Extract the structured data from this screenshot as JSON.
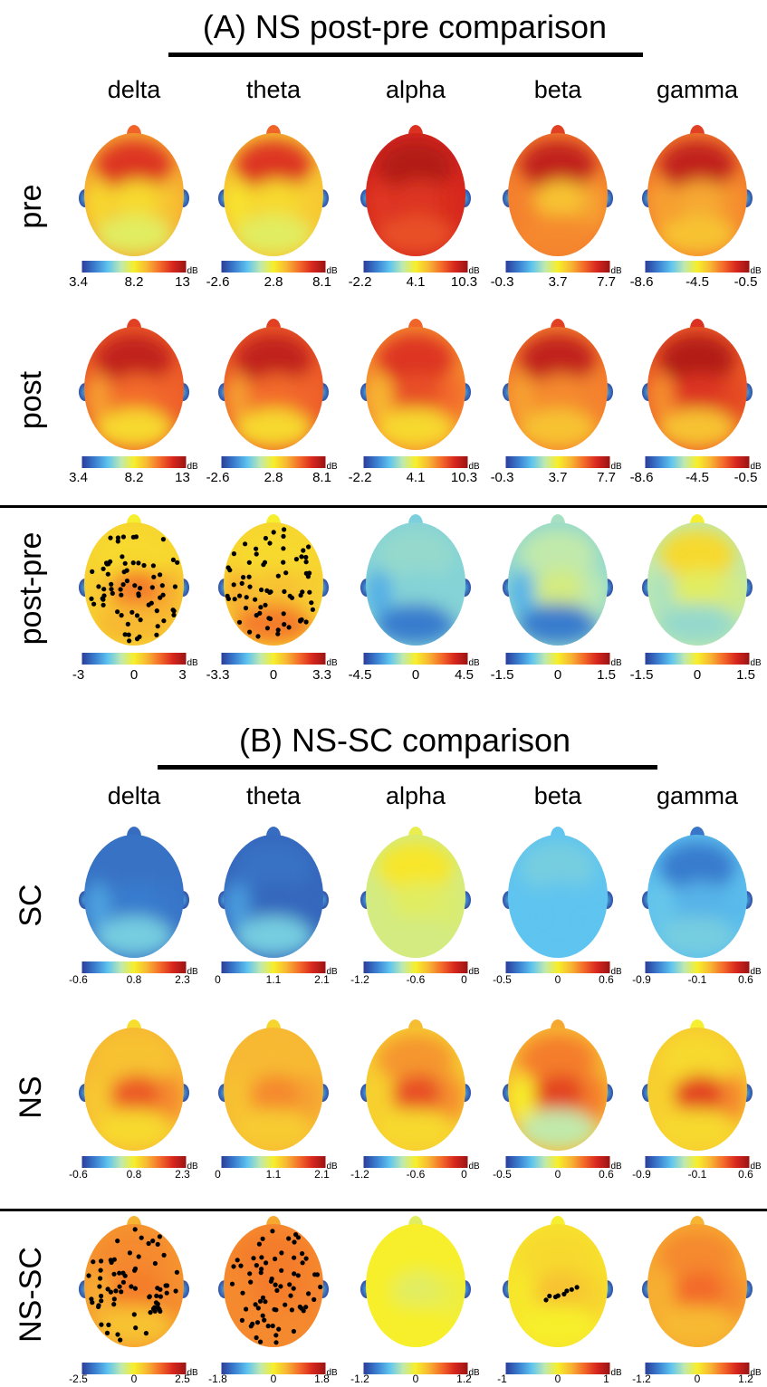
{
  "colors": {
    "colormap": [
      "#2b3d9a",
      "#3a7fd0",
      "#5fc4ef",
      "#bfe9b0",
      "#f7ef2b",
      "#f7b733",
      "#f36b2a",
      "#d7261e",
      "#9a1414"
    ],
    "figure_background": "#ffffff",
    "rule": "#000000",
    "electrode_marker": "#000000"
  },
  "unit": "dB",
  "bands": [
    "delta",
    "theta",
    "alpha",
    "beta",
    "gamma"
  ],
  "sections": [
    {
      "title": "(A) NS post-pre comparison",
      "rows": [
        {
          "label": "pre",
          "maps": [
            {
              "level": 0.65,
              "front": 0.85,
              "centre": 0.55,
              "back": 0.45
            },
            {
              "level": 0.6,
              "front": 0.85,
              "centre": 0.55,
              "back": 0.45
            },
            {
              "level": 0.88,
              "front": 0.95,
              "centre": 0.85,
              "back": 0.8
            },
            {
              "level": 0.72,
              "front": 0.92,
              "centre": 0.6,
              "back": 0.7
            },
            {
              "level": 0.72,
              "front": 0.92,
              "centre": 0.65,
              "back": 0.6
            }
          ],
          "colorbars": [
            {
              "ticks": [
                "3.4",
                "8.2",
                "13"
              ]
            },
            {
              "ticks": [
                "-2.6",
                "2.8",
                "8.1"
              ]
            },
            {
              "ticks": [
                "-2.2",
                "4.1",
                "10.3"
              ]
            },
            {
              "ticks": [
                "-0.3",
                "3.7",
                "7.7"
              ]
            },
            {
              "ticks": [
                "-8.6",
                "-4.5",
                "-0.5"
              ]
            }
          ]
        },
        {
          "label": "post",
          "maps": [
            {
              "level": 0.78,
              "front": 0.92,
              "centre": 0.75,
              "back": 0.55
            },
            {
              "level": 0.78,
              "front": 0.92,
              "centre": 0.75,
              "back": 0.55
            },
            {
              "level": 0.7,
              "front": 0.85,
              "centre": 0.8,
              "back": 0.55
            },
            {
              "level": 0.72,
              "front": 0.92,
              "centre": 0.7,
              "back": 0.6
            },
            {
              "level": 0.78,
              "front": 0.95,
              "centre": 0.85,
              "back": 0.6
            }
          ],
          "colorbars": [
            {
              "ticks": [
                "3.4",
                "8.2",
                "13"
              ]
            },
            {
              "ticks": [
                "-2.6",
                "2.8",
                "8.1"
              ]
            },
            {
              "ticks": [
                "-2.2",
                "4.1",
                "10.3"
              ]
            },
            {
              "ticks": [
                "-0.3",
                "3.7",
                "7.7"
              ]
            },
            {
              "ticks": [
                "-8.6",
                "-4.5",
                "-0.5"
              ]
            }
          ]
        },
        {
          "label": "post-pre",
          "separator_above": true,
          "maps": [
            {
              "level": 0.56,
              "front": 0.55,
              "centre": 0.72,
              "back": 0.62,
              "significant": "many"
            },
            {
              "level": 0.56,
              "front": 0.55,
              "centre": 0.6,
              "back": 0.72,
              "significant": "many"
            },
            {
              "level": 0.3,
              "front": 0.32,
              "centre": 0.3,
              "back": 0.12
            },
            {
              "level": 0.32,
              "front": 0.38,
              "centre": 0.42,
              "back": 0.12
            },
            {
              "level": 0.38,
              "front": 0.55,
              "centre": 0.45,
              "back": 0.32
            }
          ],
          "colorbars": [
            {
              "ticks": [
                "-3",
                "0",
                "3"
              ]
            },
            {
              "ticks": [
                "-3.3",
                "0",
                "3.3"
              ]
            },
            {
              "ticks": [
                "-4.5",
                "0",
                "4.5"
              ]
            },
            {
              "ticks": [
                "-1.5",
                "0",
                "1.5"
              ]
            },
            {
              "ticks": [
                "-1.5",
                "0",
                "1.5"
              ]
            }
          ]
        }
      ]
    },
    {
      "title": "(B) NS-SC comparison",
      "rows": [
        {
          "label": "SC",
          "maps": [
            {
              "level": 0.1,
              "front": 0.1,
              "centre": 0.12,
              "back": 0.28
            },
            {
              "level": 0.08,
              "front": 0.1,
              "centre": 0.08,
              "back": 0.28
            },
            {
              "level": 0.42,
              "front": 0.52,
              "centre": 0.45,
              "back": 0.42
            },
            {
              "level": 0.25,
              "front": 0.28,
              "centre": 0.25,
              "back": 0.25
            },
            {
              "level": 0.24,
              "front": 0.12,
              "centre": 0.22,
              "back": 0.28
            }
          ],
          "colorbars": [
            {
              "ticks": [
                "-0.6",
                "0.8",
                "2.3"
              ]
            },
            {
              "ticks": [
                "0",
                "1.1",
                "2.1"
              ]
            },
            {
              "ticks": [
                "-1.2",
                "-0.6",
                "0"
              ]
            },
            {
              "ticks": [
                "-0.5",
                "0",
                "0.6"
              ]
            },
            {
              "ticks": [
                "-0.9",
                "-0.1",
                "0.6"
              ]
            }
          ]
        },
        {
          "label": "NS",
          "maps": [
            {
              "level": 0.62,
              "front": 0.6,
              "centre": 0.78,
              "back": 0.55
            },
            {
              "level": 0.62,
              "front": 0.62,
              "centre": 0.7,
              "back": 0.58
            },
            {
              "level": 0.58,
              "front": 0.68,
              "centre": 0.8,
              "back": 0.55
            },
            {
              "level": 0.62,
              "front": 0.72,
              "centre": 0.82,
              "back": 0.38
            },
            {
              "level": 0.58,
              "front": 0.55,
              "centre": 0.82,
              "back": 0.55
            }
          ],
          "colorbars": [
            {
              "ticks": [
                "-0.6",
                "0.8",
                "2.3"
              ]
            },
            {
              "ticks": [
                "0",
                "1.1",
                "2.1"
              ]
            },
            {
              "ticks": [
                "-1.2",
                "-0.6",
                "0"
              ]
            },
            {
              "ticks": [
                "-0.5",
                "0",
                "0.6"
              ]
            },
            {
              "ticks": [
                "-0.9",
                "-0.1",
                "0.6"
              ]
            }
          ]
        },
        {
          "label": "NS-SC",
          "separator_above": true,
          "maps": [
            {
              "level": 0.68,
              "front": 0.7,
              "centre": 0.72,
              "back": 0.6,
              "significant": "many"
            },
            {
              "level": 0.7,
              "front": 0.72,
              "centre": 0.72,
              "back": 0.7,
              "significant": "many"
            },
            {
              "level": 0.5,
              "front": 0.5,
              "centre": 0.45,
              "back": 0.5
            },
            {
              "level": 0.53,
              "front": 0.55,
              "centre": 0.6,
              "back": 0.5,
              "significant": "few"
            },
            {
              "level": 0.65,
              "front": 0.7,
              "centre": 0.75,
              "back": 0.62
            }
          ],
          "colorbars": [
            {
              "ticks": [
                "-2.5",
                "0",
                "2.5"
              ]
            },
            {
              "ticks": [
                "-1.8",
                "0",
                "1.8"
              ]
            },
            {
              "ticks": [
                "-1.2",
                "0",
                "1.2"
              ]
            },
            {
              "ticks": [
                "-1",
                "0",
                "1"
              ]
            },
            {
              "ticks": [
                "-1.2",
                "0",
                "1.2"
              ]
            }
          ]
        }
      ]
    }
  ]
}
